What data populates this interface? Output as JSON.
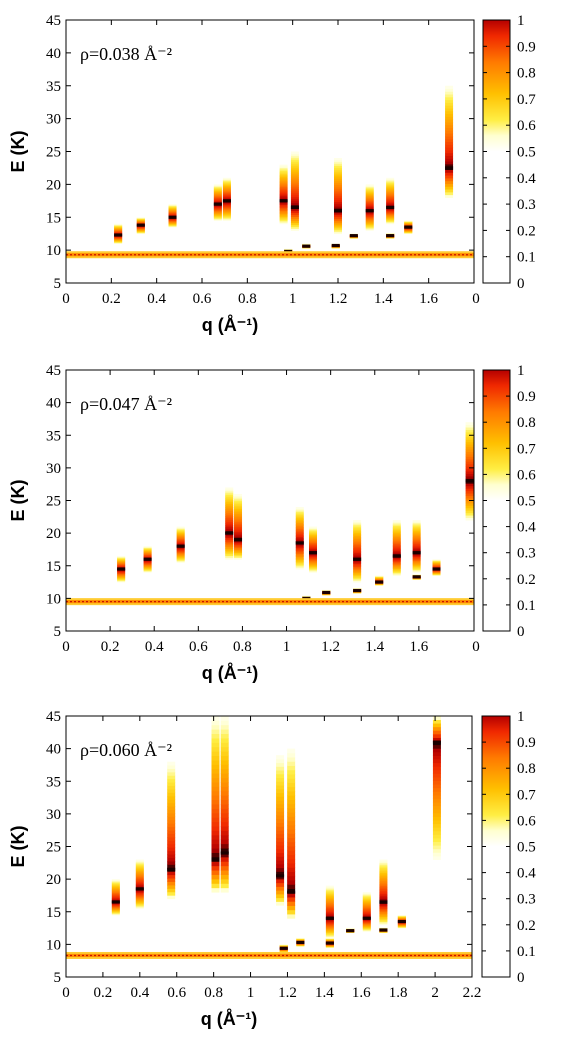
{
  "figure_colors": {
    "background": "#ffffff",
    "frame": "#000000",
    "baseline_line": "#ff8c00"
  },
  "colorbar": {
    "ticks": [
      0,
      0.1,
      0.2,
      0.3,
      0.4,
      0.5,
      0.6,
      0.7,
      0.8,
      0.9,
      1
    ],
    "tick_labels": [
      "0",
      "0.1",
      "0.2",
      "0.3",
      "0.4",
      "0.5",
      "0.6",
      "0.7",
      "0.8",
      "0.9",
      "1"
    ],
    "colormap": "white-yellow-orange-red-black"
  },
  "chart_data": [
    {
      "type": "heatmap",
      "annotation": "ρ=0.038 Å⁻²",
      "ylabel": "E (K)",
      "xlabel": "q (Å⁻¹)",
      "xlim": [
        0,
        1.8
      ],
      "ylim": [
        5,
        45
      ],
      "y_ticks": [
        5,
        10,
        15,
        20,
        25,
        30,
        35,
        40,
        45
      ],
      "x_ticks": [
        0,
        0.2,
        0.4,
        0.6,
        0.8,
        1,
        1.2,
        1.4,
        1.6
      ],
      "x_tick_labels": [
        "0",
        "0.2",
        "0.4",
        "0.6",
        "0.8",
        "1",
        "1.2",
        "1.4",
        "1.6"
      ],
      "x_end_label": "0",
      "baseline_energy": 9.3,
      "peaks": [
        {
          "q": 0.23,
          "e_min": 11,
          "e_max": 14,
          "e_peak": 12.3
        },
        {
          "q": 0.33,
          "e_min": 12.5,
          "e_max": 15,
          "e_peak": 13.8
        },
        {
          "q": 0.47,
          "e_min": 13.5,
          "e_max": 17,
          "e_peak": 15
        },
        {
          "q": 0.67,
          "e_min": 14.5,
          "e_max": 20,
          "e_peak": 17
        },
        {
          "q": 0.71,
          "e_min": 14.5,
          "e_max": 21,
          "e_peak": 17.5
        },
        {
          "q": 0.96,
          "e_min": 14,
          "e_max": 23,
          "e_peak": 17.5
        },
        {
          "q": 1.01,
          "e_min": 13,
          "e_max": 25,
          "e_peak": 16.5
        },
        {
          "q": 0.98,
          "e_min": 9.5,
          "e_max": 10.2,
          "e_peak": 9.8
        },
        {
          "q": 1.06,
          "e_min": 10.3,
          "e_max": 11,
          "e_peak": 10.6
        },
        {
          "q": 1.19,
          "e_min": 10.3,
          "e_max": 11,
          "e_peak": 10.7
        },
        {
          "q": 1.2,
          "e_min": 12.5,
          "e_max": 24,
          "e_peak": 16
        },
        {
          "q": 1.27,
          "e_min": 11.8,
          "e_max": 12.5,
          "e_peak": 12.2
        },
        {
          "q": 1.34,
          "e_min": 13,
          "e_max": 20,
          "e_peak": 16
        },
        {
          "q": 1.43,
          "e_min": 14,
          "e_max": 21,
          "e_peak": 16.5
        },
        {
          "q": 1.43,
          "e_min": 11.8,
          "e_max": 12.6,
          "e_peak": 12.2
        },
        {
          "q": 1.51,
          "e_min": 12.5,
          "e_max": 14.5,
          "e_peak": 13.5
        },
        {
          "q": 1.69,
          "e_min": 18,
          "e_max": 35,
          "e_peak": 22.5
        }
      ]
    },
    {
      "type": "heatmap",
      "annotation": "ρ=0.047 Å⁻²",
      "ylabel": "E (K)",
      "xlabel": "q (Å⁻¹)",
      "xlim": [
        0,
        1.85
      ],
      "ylim": [
        5,
        45
      ],
      "y_ticks": [
        5,
        10,
        15,
        20,
        25,
        30,
        35,
        40,
        45
      ],
      "x_ticks": [
        0,
        0.2,
        0.4,
        0.6,
        0.8,
        1,
        1.2,
        1.4,
        1.6
      ],
      "x_tick_labels": [
        "0",
        "0.2",
        "0.4",
        "0.6",
        "0.8",
        "1",
        "1.2",
        "1.4",
        "1.6"
      ],
      "x_end_label": "0",
      "baseline_energy": 9.5,
      "peaks": [
        {
          "q": 0.25,
          "e_min": 12.5,
          "e_max": 16.5,
          "e_peak": 14.5
        },
        {
          "q": 0.37,
          "e_min": 14,
          "e_max": 18,
          "e_peak": 16
        },
        {
          "q": 0.52,
          "e_min": 15.5,
          "e_max": 21,
          "e_peak": 18
        },
        {
          "q": 0.74,
          "e_min": 16,
          "e_max": 27,
          "e_peak": 20
        },
        {
          "q": 0.78,
          "e_min": 16,
          "e_max": 26,
          "e_peak": 19
        },
        {
          "q": 1.06,
          "e_min": 14.5,
          "e_max": 24,
          "e_peak": 18.5
        },
        {
          "q": 1.09,
          "e_min": 9.6,
          "e_max": 10.4,
          "e_peak": 10
        },
        {
          "q": 1.12,
          "e_min": 14,
          "e_max": 21,
          "e_peak": 17
        },
        {
          "q": 1.18,
          "e_min": 10.5,
          "e_max": 11.3,
          "e_peak": 10.9
        },
        {
          "q": 1.32,
          "e_min": 10.8,
          "e_max": 11.6,
          "e_peak": 11.2
        },
        {
          "q": 1.32,
          "e_min": 12.5,
          "e_max": 22,
          "e_peak": 16
        },
        {
          "q": 1.42,
          "e_min": 12,
          "e_max": 13.5,
          "e_peak": 12.5
        },
        {
          "q": 1.5,
          "e_min": 13.5,
          "e_max": 22,
          "e_peak": 16.5
        },
        {
          "q": 1.59,
          "e_min": 14,
          "e_max": 22,
          "e_peak": 17
        },
        {
          "q": 1.59,
          "e_min": 12.9,
          "e_max": 13.7,
          "e_peak": 13.3
        },
        {
          "q": 1.68,
          "e_min": 13.5,
          "e_max": 16,
          "e_peak": 14.5
        },
        {
          "q": 1.83,
          "e_min": 22,
          "e_max": 37,
          "e_peak": 28
        }
      ]
    },
    {
      "type": "heatmap",
      "annotation": "ρ=0.060 Å⁻²",
      "ylabel": "E (K)",
      "xlabel": "q (Å⁻¹)",
      "xlim": [
        0,
        2.2
      ],
      "ylim": [
        5,
        45
      ],
      "y_ticks": [
        5,
        10,
        15,
        20,
        25,
        30,
        35,
        40,
        45
      ],
      "x_ticks": [
        0,
        0.2,
        0.4,
        0.6,
        0.8,
        1,
        1.2,
        1.4,
        1.6,
        1.8,
        2,
        2.2
      ],
      "x_tick_labels": [
        "0",
        "0.2",
        "0.4",
        "0.6",
        "0.8",
        "1",
        "1.2",
        "1.4",
        "1.6",
        "1.8",
        "2",
        "2.2"
      ],
      "x_end_label": "",
      "baseline_energy": 8.3,
      "peaks": [
        {
          "q": 0.27,
          "e_min": 14.5,
          "e_max": 20,
          "e_peak": 16.5
        },
        {
          "q": 0.4,
          "e_min": 15.5,
          "e_max": 23,
          "e_peak": 18.5
        },
        {
          "q": 0.57,
          "e_min": 17,
          "e_max": 38,
          "e_peak": 21.5
        },
        {
          "q": 0.81,
          "e_min": 18,
          "e_max": 45,
          "e_peak": 23
        },
        {
          "q": 0.86,
          "e_min": 18,
          "e_max": 45,
          "e_peak": 24
        },
        {
          "q": 1.16,
          "e_min": 16,
          "e_max": 39,
          "e_peak": 20.5
        },
        {
          "q": 1.18,
          "e_min": 8.8,
          "e_max": 10,
          "e_peak": 9.4
        },
        {
          "q": 1.22,
          "e_min": 14,
          "e_max": 40,
          "e_peak": 18
        },
        {
          "q": 1.27,
          "e_min": 9.7,
          "e_max": 11,
          "e_peak": 10.3
        },
        {
          "q": 1.43,
          "e_min": 11,
          "e_max": 19,
          "e_peak": 14
        },
        {
          "q": 1.43,
          "e_min": 9.5,
          "e_max": 11,
          "e_peak": 10.2
        },
        {
          "q": 1.54,
          "e_min": 11.8,
          "e_max": 12.5,
          "e_peak": 12.1
        },
        {
          "q": 1.63,
          "e_min": 12,
          "e_max": 18,
          "e_peak": 14
        },
        {
          "q": 1.72,
          "e_min": 13,
          "e_max": 23,
          "e_peak": 16.5
        },
        {
          "q": 1.72,
          "e_min": 11.8,
          "e_max": 12.6,
          "e_peak": 12.2
        },
        {
          "q": 1.82,
          "e_min": 12.5,
          "e_max": 14.5,
          "e_peak": 13.5
        },
        {
          "q": 2.01,
          "e_min": 23,
          "e_max": 45,
          "e_peak": 41
        }
      ]
    }
  ]
}
